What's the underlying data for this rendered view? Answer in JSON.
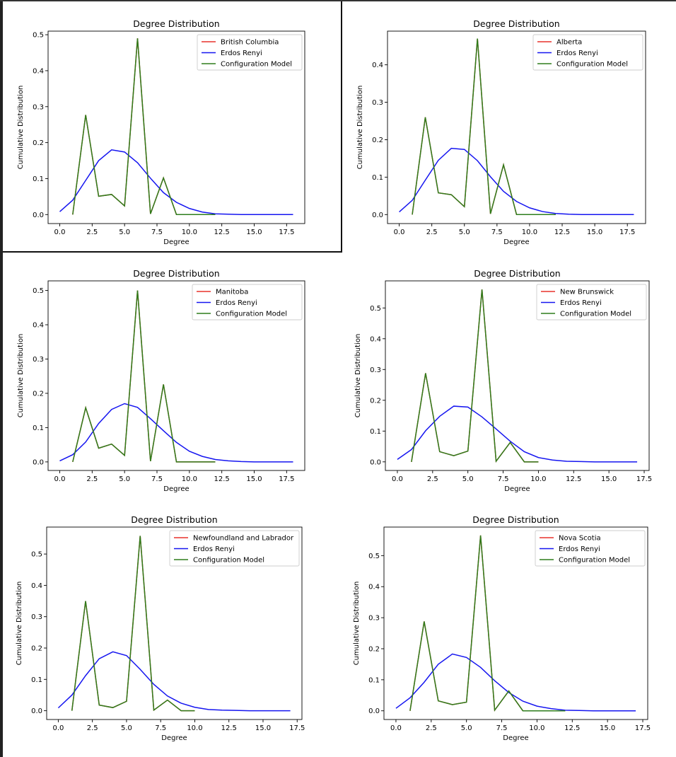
{
  "colors": {
    "province": "#e8322b",
    "erdos_renyi": "#1515f0",
    "configuration": "#2e7d1c"
  },
  "chart_data": [
    {
      "type": "line",
      "title": "Degree Distribution",
      "xlabel": "Degree",
      "ylabel": "Cumulative Distribution",
      "xlim": [
        -0.9,
        18.9
      ],
      "ylim": [
        -0.025,
        0.51
      ],
      "xticks": [
        "0.0",
        "2.5",
        "5.0",
        "7.5",
        "10.0",
        "12.5",
        "15.0",
        "17.5"
      ],
      "yticks": [
        "0.0",
        "0.1",
        "0.2",
        "0.3",
        "0.4",
        "0.5"
      ],
      "ytick_values": [
        0,
        0.1,
        0.2,
        0.3,
        0.4,
        0.5
      ],
      "series": [
        {
          "name": "British Columbia",
          "key": "province",
          "x": [
            1,
            2,
            3,
            4,
            5,
            6,
            7,
            8,
            9,
            10,
            11,
            12
          ],
          "y": [
            0,
            0.277,
            0.051,
            0.056,
            0.024,
            0.49,
            0.002,
            0.102,
            0,
            0,
            0,
            0
          ]
        },
        {
          "name": "Erdos Renyi",
          "key": "erdos_renyi",
          "x": [
            0,
            1,
            2,
            3,
            4,
            5,
            6,
            7,
            8,
            9,
            10,
            11,
            12,
            13,
            14,
            15,
            16,
            17,
            18
          ],
          "y": [
            0.008,
            0.04,
            0.095,
            0.15,
            0.18,
            0.174,
            0.144,
            0.101,
            0.061,
            0.034,
            0.017,
            0.007,
            0.002,
            0.001,
            0,
            0,
            0,
            0,
            0
          ]
        },
        {
          "name": "Configuration Model",
          "key": "configuration",
          "x": [
            1,
            2,
            3,
            4,
            5,
            6,
            7,
            8,
            9,
            10,
            11,
            12
          ],
          "y": [
            0,
            0.277,
            0.051,
            0.056,
            0.024,
            0.49,
            0.002,
            0.102,
            0,
            0,
            0,
            0
          ]
        }
      ]
    },
    {
      "type": "line",
      "title": "Degree Distribution",
      "xlabel": "Degree",
      "ylabel": "Cumulative Distribution",
      "xlim": [
        -0.9,
        18.9
      ],
      "ylim": [
        -0.024,
        0.49
      ],
      "xticks": [
        "0.0",
        "2.5",
        "5.0",
        "7.5",
        "10.0",
        "12.5",
        "15.0",
        "17.5"
      ],
      "yticks": [
        "0.0",
        "0.1",
        "0.2",
        "0.3",
        "0.4"
      ],
      "ytick_values": [
        0,
        0.1,
        0.2,
        0.3,
        0.4
      ],
      "series": [
        {
          "name": "Alberta",
          "key": "province",
          "x": [
            1,
            2,
            3,
            4,
            5,
            6,
            7,
            8,
            9,
            10,
            11,
            12
          ],
          "y": [
            0,
            0.26,
            0.058,
            0.053,
            0.021,
            0.47,
            0.002,
            0.133,
            0,
            0,
            0,
            0
          ]
        },
        {
          "name": "Erdos Renyi",
          "key": "erdos_renyi",
          "x": [
            0,
            1,
            2,
            3,
            4,
            5,
            6,
            7,
            8,
            9,
            10,
            11,
            12,
            13,
            14,
            15,
            16,
            17,
            18
          ],
          "y": [
            0.007,
            0.038,
            0.092,
            0.145,
            0.177,
            0.174,
            0.144,
            0.101,
            0.062,
            0.035,
            0.018,
            0.008,
            0.003,
            0.001,
            0,
            0,
            0,
            0,
            0
          ]
        },
        {
          "name": "Configuration Model",
          "key": "configuration",
          "x": [
            1,
            2,
            3,
            4,
            5,
            6,
            7,
            8,
            9,
            10,
            11,
            12
          ],
          "y": [
            0,
            0.26,
            0.058,
            0.053,
            0.021,
            0.47,
            0.002,
            0.133,
            0,
            0,
            0,
            0
          ]
        }
      ]
    },
    {
      "type": "line",
      "title": "Degree Distribution",
      "xlabel": "Degree",
      "ylabel": "Cumulative Distribution",
      "xlim": [
        -0.9,
        18.9
      ],
      "ylim": [
        -0.025,
        0.528
      ],
      "xticks": [
        "0.0",
        "2.5",
        "5.0",
        "7.5",
        "10.0",
        "12.5",
        "15.0",
        "17.5"
      ],
      "yticks": [
        "0.0",
        "0.1",
        "0.2",
        "0.3",
        "0.4",
        "0.5"
      ],
      "ytick_values": [
        0,
        0.1,
        0.2,
        0.3,
        0.4,
        0.5
      ],
      "series": [
        {
          "name": "Manitoba",
          "key": "province",
          "x": [
            1,
            2,
            3,
            4,
            5,
            6,
            7,
            8,
            9,
            10,
            11,
            12
          ],
          "y": [
            0,
            0.158,
            0.04,
            0.052,
            0.019,
            0.5,
            0.002,
            0.226,
            0,
            0,
            0,
            0
          ]
        },
        {
          "name": "Erdos Renyi",
          "key": "erdos_renyi",
          "x": [
            0,
            1,
            2,
            3,
            4,
            5,
            6,
            7,
            8,
            9,
            10,
            11,
            12,
            13,
            14,
            15,
            16,
            17,
            18
          ],
          "y": [
            0.003,
            0.021,
            0.058,
            0.112,
            0.153,
            0.17,
            0.159,
            0.126,
            0.091,
            0.057,
            0.031,
            0.016,
            0.007,
            0.003,
            0.001,
            0,
            0,
            0,
            0
          ]
        },
        {
          "name": "Configuration Model",
          "key": "configuration",
          "x": [
            1,
            2,
            3,
            4,
            5,
            6,
            7,
            8,
            9,
            10,
            11,
            12
          ],
          "y": [
            0,
            0.158,
            0.04,
            0.052,
            0.019,
            0.5,
            0.002,
            0.226,
            0,
            0,
            0,
            0
          ]
        }
      ]
    },
    {
      "type": "line",
      "title": "Degree Distribution",
      "xlabel": "Degree",
      "ylabel": "Cumulative Distribution",
      "xlim": [
        -0.85,
        17.85
      ],
      "ylim": [
        -0.028,
        0.588
      ],
      "xticks": [
        "0.0",
        "2.5",
        "5.0",
        "7.5",
        "10.0",
        "12.5",
        "15.0",
        "17.5"
      ],
      "yticks": [
        "0.0",
        "0.1",
        "0.2",
        "0.3",
        "0.4",
        "0.5"
      ],
      "ytick_values": [
        0,
        0.1,
        0.2,
        0.3,
        0.4,
        0.5
      ],
      "series": [
        {
          "name": "New Brunswick",
          "key": "province",
          "x": [
            1,
            2,
            3,
            4,
            5,
            6,
            7,
            8,
            9,
            10
          ],
          "y": [
            0,
            0.288,
            0.033,
            0.02,
            0.035,
            0.56,
            0.002,
            0.063,
            0,
            0
          ]
        },
        {
          "name": "Erdos Renyi",
          "key": "erdos_renyi",
          "x": [
            0,
            1,
            2,
            3,
            4,
            5,
            6,
            7,
            8,
            9,
            10,
            11,
            12,
            13,
            14,
            15,
            16,
            17
          ],
          "y": [
            0.008,
            0.04,
            0.101,
            0.148,
            0.181,
            0.178,
            0.146,
            0.107,
            0.067,
            0.033,
            0.014,
            0.006,
            0.002,
            0.001,
            0,
            0,
            0,
            0
          ]
        },
        {
          "name": "Configuration Model",
          "key": "configuration",
          "x": [
            1,
            2,
            3,
            4,
            5,
            6,
            7,
            8,
            9,
            10
          ],
          "y": [
            0,
            0.288,
            0.033,
            0.02,
            0.035,
            0.56,
            0.002,
            0.063,
            0,
            0
          ]
        }
      ]
    },
    {
      "type": "line",
      "title": "Degree Distribution",
      "xlabel": "Degree",
      "ylabel": "Cumulative Distribution",
      "xlim": [
        -0.85,
        17.85
      ],
      "ylim": [
        -0.028,
        0.586
      ],
      "xticks": [
        "0.0",
        "2.5",
        "5.0",
        "7.5",
        "10.0",
        "12.5",
        "15.0",
        "17.5"
      ],
      "yticks": [
        "0.0",
        "0.1",
        "0.2",
        "0.3",
        "0.4",
        "0.5"
      ],
      "ytick_values": [
        0,
        0.1,
        0.2,
        0.3,
        0.4,
        0.5
      ],
      "series": [
        {
          "name": "Newfoundland and Labrador",
          "key": "province",
          "x": [
            1,
            2,
            3,
            4,
            5,
            6,
            7,
            8,
            9,
            10
          ],
          "y": [
            0,
            0.35,
            0.018,
            0.01,
            0.03,
            0.558,
            0.002,
            0.034,
            0,
            0
          ]
        },
        {
          "name": "Erdos Renyi",
          "key": "erdos_renyi",
          "x": [
            0,
            1,
            2,
            3,
            4,
            5,
            6,
            7,
            8,
            9,
            10,
            11,
            12,
            13,
            14,
            15,
            16,
            17
          ],
          "y": [
            0.009,
            0.05,
            0.112,
            0.166,
            0.188,
            0.176,
            0.132,
            0.084,
            0.047,
            0.024,
            0.011,
            0.004,
            0.002,
            0.001,
            0,
            0,
            0,
            0
          ]
        },
        {
          "name": "Configuration Model",
          "key": "configuration",
          "x": [
            1,
            2,
            3,
            4,
            5,
            6,
            7,
            8,
            9,
            10
          ],
          "y": [
            0,
            0.35,
            0.018,
            0.01,
            0.03,
            0.558,
            0.002,
            0.034,
            0,
            0
          ]
        }
      ]
    },
    {
      "type": "line",
      "title": "Degree Distribution",
      "xlabel": "Degree",
      "ylabel": "Cumulative Distribution",
      "xlim": [
        -0.85,
        17.85
      ],
      "ylim": [
        -0.028,
        0.592
      ],
      "xticks": [
        "0.0",
        "2.5",
        "5.0",
        "7.5",
        "10.0",
        "12.5",
        "15.0",
        "17.5"
      ],
      "yticks": [
        "0.0",
        "0.1",
        "0.2",
        "0.3",
        "0.4",
        "0.5"
      ],
      "ytick_values": [
        0,
        0.1,
        0.2,
        0.3,
        0.4,
        0.5
      ],
      "series": [
        {
          "name": "Nova Scotia",
          "key": "province",
          "x": [
            1,
            2,
            3,
            4,
            5,
            6,
            7,
            8,
            9,
            10,
            11,
            12
          ],
          "y": [
            0,
            0.288,
            0.032,
            0.02,
            0.028,
            0.565,
            0.002,
            0.064,
            0,
            0,
            0,
            0
          ]
        },
        {
          "name": "Erdos Renyi",
          "key": "erdos_renyi",
          "x": [
            0,
            1,
            2,
            3,
            4,
            5,
            6,
            7,
            8,
            9,
            10,
            11,
            12,
            13,
            14,
            15,
            16,
            17
          ],
          "y": [
            0.008,
            0.042,
            0.092,
            0.15,
            0.183,
            0.172,
            0.14,
            0.097,
            0.059,
            0.031,
            0.015,
            0.007,
            0.002,
            0.001,
            0,
            0,
            0,
            0
          ]
        },
        {
          "name": "Configuration Model",
          "key": "configuration",
          "x": [
            1,
            2,
            3,
            4,
            5,
            6,
            7,
            8,
            9,
            10,
            11,
            12
          ],
          "y": [
            0,
            0.288,
            0.032,
            0.02,
            0.028,
            0.565,
            0.002,
            0.064,
            0,
            0,
            0,
            0
          ]
        }
      ]
    }
  ]
}
